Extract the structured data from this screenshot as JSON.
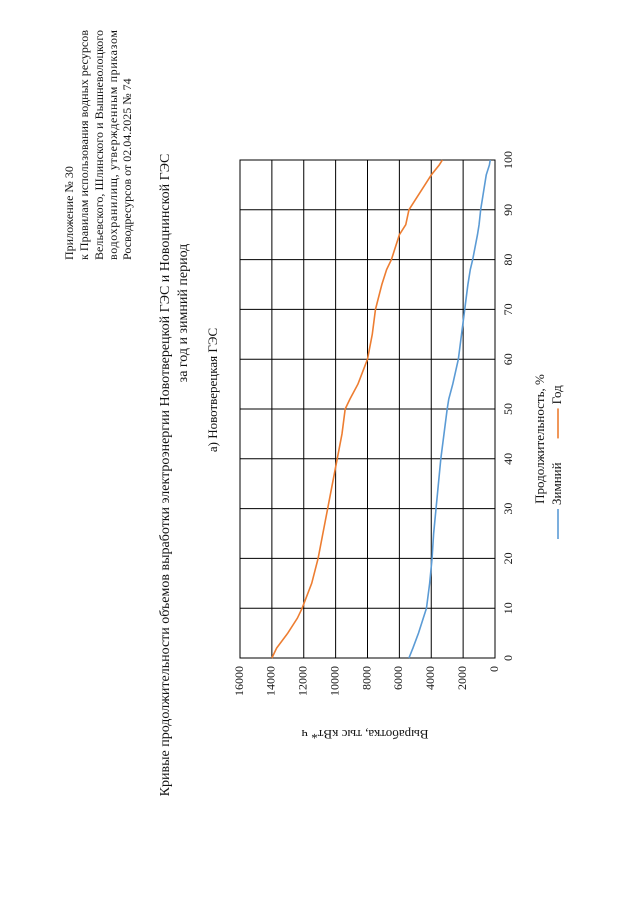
{
  "header": {
    "lines": [
      "Приложение № 30",
      "к Правилам использования водных ресурсов",
      "Вельевского, Шлинского и Вышневолоцкого",
      "водохранилищ, утвержденным приказом",
      "Росводресурсов от 02.04.2025 № 74"
    ]
  },
  "title": "Кривые продолжительности объемов выработки электроэнергии Новотверецкой ГЭС и Новоцнинской ГЭС",
  "subtitle": "за год и зимний период",
  "section": "а) Новотверецкая ГЭС",
  "chart_data": {
    "type": "line",
    "x_label": "Продолжительность, %",
    "y_label": "Выработка, тыс кВт* ч",
    "x": [
      0,
      2,
      5,
      8,
      10,
      15,
      20,
      25,
      30,
      35,
      40,
      45,
      50,
      52,
      55,
      60,
      65,
      70,
      75,
      78,
      80,
      85,
      87,
      90,
      92,
      95,
      97,
      99,
      100
    ],
    "series": [
      {
        "name": "Зимний",
        "color": "#5b9bd5",
        "values": [
          5400,
          5150,
          4800,
          4500,
          4300,
          4100,
          3950,
          3850,
          3700,
          3550,
          3400,
          3200,
          3000,
          2900,
          2650,
          2300,
          2100,
          1900,
          1700,
          1550,
          1400,
          1100,
          1000,
          900,
          800,
          650,
          550,
          350,
          300
        ]
      },
      {
        "name": "Год",
        "color": "#ed7d31",
        "values": [
          14000,
          13700,
          13000,
          12400,
          12100,
          11500,
          11100,
          10800,
          10500,
          10200,
          9900,
          9600,
          9400,
          9100,
          8600,
          8000,
          7700,
          7500,
          7100,
          6800,
          6500,
          6000,
          5600,
          5400,
          5000,
          4400,
          4000,
          3500,
          3300
        ]
      }
    ],
    "xlim": [
      0,
      100
    ],
    "xticks": [
      0,
      10,
      20,
      30,
      40,
      50,
      60,
      70,
      80,
      90,
      100
    ],
    "ylim": [
      0,
      16000
    ],
    "yticks": [
      0,
      2000,
      4000,
      6000,
      8000,
      10000,
      12000,
      14000,
      16000
    ],
    "grid": true,
    "legend": "bottom"
  }
}
